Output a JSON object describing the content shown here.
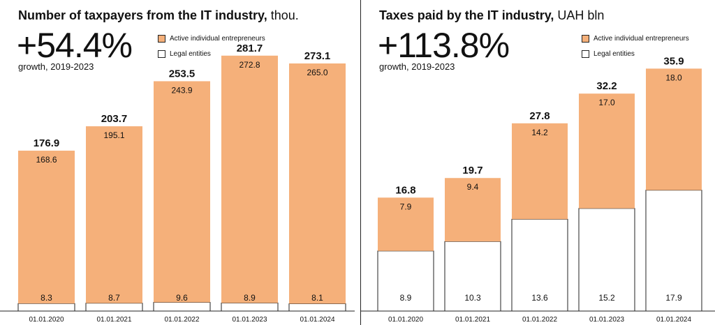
{
  "colors": {
    "entrepreneurs": "#F5B07A",
    "legal": "#FFFFFF",
    "outline": "#222222",
    "text": "#111111"
  },
  "legend": {
    "entrepreneurs": "Active individual entrepreneurs",
    "legal": "Legal entities"
  },
  "left_panel": {
    "title": "Number of taxpayers from the IT industry,",
    "unit": "thou.",
    "headline": "+54.4%",
    "growth_label": "growth, 2019-2023"
  },
  "right_panel": {
    "title": "Taxes paid by the IT industry,",
    "unit": "UAH bln",
    "headline": "+113.8%",
    "growth_label": "growth, 2019-2023"
  },
  "chart_data": [
    {
      "type": "bar",
      "stacked": true,
      "categories": [
        "01.01.2020",
        "01.01.2021",
        "01.01.2022",
        "01.01.2023",
        "01.01.2024"
      ],
      "series": [
        {
          "name": "Legal entities",
          "values": [
            8.3,
            8.7,
            9.6,
            8.9,
            8.1
          ]
        },
        {
          "name": "Active individual entrepreneurs",
          "values": [
            168.6,
            195.1,
            243.9,
            272.8,
            265.0
          ]
        }
      ],
      "totals": [
        176.9,
        203.7,
        253.5,
        281.7,
        273.1
      ],
      "title": "Number of taxpayers from the IT industry, thou.",
      "ylim": [
        0,
        300
      ]
    },
    {
      "type": "bar",
      "stacked": true,
      "categories": [
        "01.01.2020",
        "01.01.2021",
        "01.01.2022",
        "01.01.2023",
        "01.01.2024"
      ],
      "series": [
        {
          "name": "Legal entities",
          "values": [
            8.9,
            10.3,
            13.6,
            15.2,
            17.9
          ]
        },
        {
          "name": "Active individual entrepreneurs",
          "values": [
            7.9,
            9.4,
            14.2,
            17.0,
            18.0
          ]
        }
      ],
      "totals": [
        16.8,
        19.7,
        27.8,
        32.2,
        35.9
      ],
      "title": "Taxes paid by the IT industry, UAH bln",
      "ylim": [
        0,
        41
      ]
    }
  ]
}
